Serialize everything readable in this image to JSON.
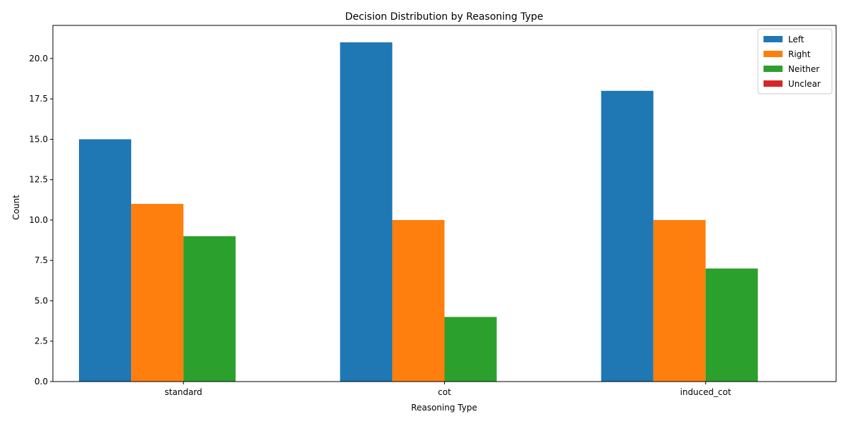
{
  "chart_data": {
    "type": "bar",
    "title": "Decision Distribution by Reasoning Type",
    "xlabel": "Reasoning Type",
    "ylabel": "Count",
    "categories": [
      "standard",
      "cot",
      "induced_cot"
    ],
    "series": [
      {
        "name": "Left",
        "color": "#1f77b4",
        "values": [
          15,
          21,
          18
        ]
      },
      {
        "name": "Right",
        "color": "#ff7f0e",
        "values": [
          11,
          10,
          10
        ]
      },
      {
        "name": "Neither",
        "color": "#2ca02c",
        "values": [
          9,
          4,
          7
        ]
      },
      {
        "name": "Unclear",
        "color": "#d62728",
        "values": [
          0,
          0,
          0
        ]
      }
    ],
    "ylim": [
      0,
      22.05
    ],
    "yticks": [
      "0.0",
      "2.5",
      "5.0",
      "7.5",
      "10.0",
      "12.5",
      "15.0",
      "17.5",
      "20.0"
    ],
    "grid": false,
    "legend_position": "top-right"
  }
}
